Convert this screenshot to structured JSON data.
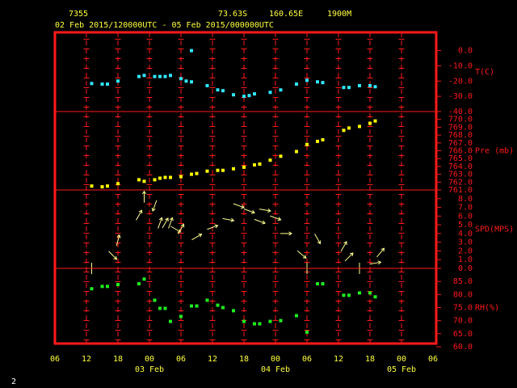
{
  "header": {
    "station": "7355",
    "lat": "73.63S",
    "lon": "160.65E",
    "elev": "1900M",
    "period": "02 Feb 2015/120000UTC - 05 Feb 2015/000000UTC"
  },
  "page_number": "2",
  "chart_data": [
    {
      "type": "scatter",
      "y_label": "T(C)",
      "color": "#30e8ff",
      "ylim": [
        -40,
        12
      ],
      "yticks": [
        {
          "value": 0,
          "label": "0.0"
        },
        {
          "value": -10,
          "label": "-10.0"
        },
        {
          "value": -20,
          "label": "-20.0"
        },
        {
          "value": -30,
          "label": "-30.0"
        },
        {
          "value": -40,
          "label": "-40.0"
        }
      ],
      "x": [
        "2015-02-02T13:00",
        "2015-02-02T15:00",
        "2015-02-02T16:00",
        "2015-02-02T18:00",
        "2015-02-02T22:00",
        "2015-02-02T23:00",
        "2015-02-03T01:00",
        "2015-02-03T02:00",
        "2015-02-03T03:00",
        "2015-02-03T04:00",
        "2015-02-03T06:00",
        "2015-02-03T07:00",
        "2015-02-03T08:00",
        "2015-02-03T08:00",
        "2015-02-03T11:00",
        "2015-02-03T13:00",
        "2015-02-03T14:00",
        "2015-02-03T16:00",
        "2015-02-03T18:00",
        "2015-02-03T19:00",
        "2015-02-03T20:00",
        "2015-02-03T23:00",
        "2015-02-04T01:00",
        "2015-02-04T04:00",
        "2015-02-04T06:00",
        "2015-02-04T08:00",
        "2015-02-04T09:00",
        "2015-02-04T13:00",
        "2015-02-04T14:00",
        "2015-02-04T16:00",
        "2015-02-04T18:00",
        "2015-02-04T19:00"
      ],
      "values": [
        -21.6,
        -22,
        -22,
        -20,
        -17,
        -16.3,
        -17,
        -17,
        -17,
        -16.3,
        -18.4,
        -20,
        -20.5,
        0,
        -23,
        -25.8,
        -26.3,
        -29,
        -30,
        -29.5,
        -28.4,
        -27.4,
        -25.8,
        -22,
        -19.5,
        -20.5,
        -21,
        -24.2,
        -24.2,
        -23,
        -23,
        -23.7
      ]
    },
    {
      "type": "scatter",
      "y_label": "Pre (mb)",
      "color": "#ffff00",
      "ylim": [
        761,
        771
      ],
      "yticks": [
        {
          "value": 770,
          "label": "770.0"
        },
        {
          "value": 769,
          "label": "769.0"
        },
        {
          "value": 768,
          "label": "768.0"
        },
        {
          "value": 767,
          "label": "767.0"
        },
        {
          "value": 766,
          "label": "766.0"
        },
        {
          "value": 765,
          "label": "765.0"
        },
        {
          "value": 764,
          "label": "764.0"
        },
        {
          "value": 763,
          "label": "763.0"
        },
        {
          "value": 762,
          "label": "762.0"
        },
        {
          "value": 761,
          "label": "761.0"
        }
      ],
      "x": [
        "2015-02-02T13:00",
        "2015-02-02T15:00",
        "2015-02-02T16:00",
        "2015-02-02T18:00",
        "2015-02-02T22:00",
        "2015-02-02T23:00",
        "2015-02-03T01:00",
        "2015-02-03T02:00",
        "2015-02-03T03:00",
        "2015-02-03T04:00",
        "2015-02-03T06:00",
        "2015-02-03T08:00",
        "2015-02-03T09:00",
        "2015-02-03T11:00",
        "2015-02-03T13:00",
        "2015-02-03T14:00",
        "2015-02-03T16:00",
        "2015-02-03T18:00",
        "2015-02-03T20:00",
        "2015-02-03T21:00",
        "2015-02-03T23:00",
        "2015-02-04T01:00",
        "2015-02-04T04:00",
        "2015-02-04T06:00",
        "2015-02-04T08:00",
        "2015-02-04T09:00",
        "2015-02-04T13:00",
        "2015-02-04T14:00",
        "2015-02-04T16:00",
        "2015-02-04T18:00",
        "2015-02-04T19:00"
      ],
      "values": [
        761.5,
        761.4,
        761.5,
        761.8,
        762.3,
        762.1,
        762.3,
        762.5,
        762.6,
        762.6,
        762.7,
        763.0,
        763.1,
        763.4,
        763.5,
        763.5,
        763.7,
        763.9,
        764.2,
        764.3,
        764.8,
        765.3,
        765.9,
        766.8,
        767.2,
        767.4,
        768.6,
        768.9,
        769.1,
        769.5,
        769.8
      ]
    },
    {
      "type": "vector",
      "y_label": "SPD(MPS)",
      "color": "#ffff90",
      "ylim": [
        0,
        9
      ],
      "yticks": [
        {
          "value": 8,
          "label": "8.0"
        },
        {
          "value": 7,
          "label": "7.0"
        },
        {
          "value": 6,
          "label": "6.0"
        },
        {
          "value": 5,
          "label": "5.0"
        },
        {
          "value": 4,
          "label": "4.0"
        },
        {
          "value": 3,
          "label": "3.0"
        },
        {
          "value": 2,
          "label": "2.0"
        },
        {
          "value": 1,
          "label": "1.0"
        },
        {
          "value": 0,
          "label": "0.0"
        }
      ],
      "x": [
        "2015-02-02T13:00",
        "2015-02-02T17:00",
        "2015-02-02T18:00",
        "2015-02-02T22:00",
        "2015-02-02T23:00",
        "2015-02-03T01:00",
        "2015-02-03T02:00",
        "2015-02-03T03:00",
        "2015-02-03T04:00",
        "2015-02-03T05:00",
        "2015-02-03T06:00",
        "2015-02-03T09:00",
        "2015-02-03T12:00",
        "2015-02-03T15:00",
        "2015-02-03T17:00",
        "2015-02-03T19:00",
        "2015-02-03T21:00",
        "2015-02-03T22:00",
        "2015-02-04T00:00",
        "2015-02-04T02:00",
        "2015-02-04T05:00",
        "2015-02-04T06:00",
        "2015-02-04T08:00",
        "2015-02-04T13:00",
        "2015-02-04T14:00",
        "2015-02-04T16:00",
        "2015-02-04T19:00",
        "2015-02-04T20:00"
      ],
      "values": [
        0,
        1.5,
        3.2,
        6.1,
        8.2,
        7.2,
        5.2,
        5.2,
        5.2,
        4.5,
        4.5,
        3.6,
        4.7,
        5.6,
        7.2,
        6.6,
        5.4,
        6.7,
        5.8,
        4.0,
        1.6,
        0,
        3.4,
        2.5,
        1.3,
        0,
        0.6,
        1.8
      ],
      "direction": [
        0,
        135,
        15,
        30,
        0,
        200,
        20,
        30,
        20,
        120,
        30,
        60,
        70,
        100,
        110,
        110,
        110,
        100,
        110,
        90,
        130,
        0,
        150,
        30,
        45,
        0,
        80,
        40
      ]
    },
    {
      "type": "scatter",
      "y_label": "RH(%)",
      "color": "#20f020",
      "ylim": [
        60,
        90
      ],
      "yticks": [
        {
          "value": 85,
          "label": "85.0"
        },
        {
          "value": 80,
          "label": "80.0"
        },
        {
          "value": 75,
          "label": "75.0"
        },
        {
          "value": 70,
          "label": "70.0"
        },
        {
          "value": 65,
          "label": "65.0"
        },
        {
          "value": 60,
          "label": "60.0"
        }
      ],
      "x": [
        "2015-02-02T13:00",
        "2015-02-02T15:00",
        "2015-02-02T16:00",
        "2015-02-02T18:00",
        "2015-02-02T22:00",
        "2015-02-02T23:00",
        "2015-02-03T01:00",
        "2015-02-03T02:00",
        "2015-02-03T03:00",
        "2015-02-03T04:00",
        "2015-02-03T06:00",
        "2015-02-03T08:00",
        "2015-02-03T09:00",
        "2015-02-03T11:00",
        "2015-02-03T13:00",
        "2015-02-03T14:00",
        "2015-02-03T16:00",
        "2015-02-03T18:00",
        "2015-02-03T20:00",
        "2015-02-03T21:00",
        "2015-02-03T23:00",
        "2015-02-04T01:00",
        "2015-02-04T04:00",
        "2015-02-04T06:00",
        "2015-02-04T08:00",
        "2015-02-04T09:00",
        "2015-02-04T13:00",
        "2015-02-04T14:00",
        "2015-02-04T16:00",
        "2015-02-04T18:00",
        "2015-02-04T19:00"
      ],
      "values": [
        82.2,
        83.1,
        83.1,
        83.8,
        84.1,
        85.9,
        77.8,
        74.7,
        74.7,
        69.7,
        71.6,
        75.6,
        75.6,
        77.8,
        75.9,
        75,
        73.8,
        69.7,
        68.8,
        68.8,
        69.7,
        70,
        71.9,
        65.6,
        84.1,
        84.1,
        79.7,
        79.7,
        80.6,
        80.6,
        79.1
      ],
      "xlim": [
        "2015-02-02T06:00",
        "2015-02-05T06:00"
      ],
      "xticks": [
        {
          "value": "2015-02-02T06:00",
          "label": "06"
        },
        {
          "value": "2015-02-02T12:00",
          "label": "12"
        },
        {
          "value": "2015-02-02T18:00",
          "label": "18"
        },
        {
          "value": "2015-02-03T00:00",
          "label": "00"
        },
        {
          "value": "2015-02-03T06:00",
          "label": "06"
        },
        {
          "value": "2015-02-03T12:00",
          "label": "12"
        },
        {
          "value": "2015-02-03T18:00",
          "label": "18"
        },
        {
          "value": "2015-02-04T00:00",
          "label": "00"
        },
        {
          "value": "2015-02-04T06:00",
          "label": "06"
        },
        {
          "value": "2015-02-04T12:00",
          "label": "12"
        },
        {
          "value": "2015-02-04T18:00",
          "label": "18"
        },
        {
          "value": "2015-02-05T00:00",
          "label": "00"
        },
        {
          "value": "2015-02-05T06:00",
          "label": "06"
        }
      ],
      "date_labels": [
        {
          "value": "2015-02-03T00:00",
          "label": "03 Feb"
        },
        {
          "value": "2015-02-04T00:00",
          "label": "04 Feb"
        },
        {
          "value": "2015-02-05T00:00",
          "label": "05 Feb"
        }
      ]
    }
  ]
}
